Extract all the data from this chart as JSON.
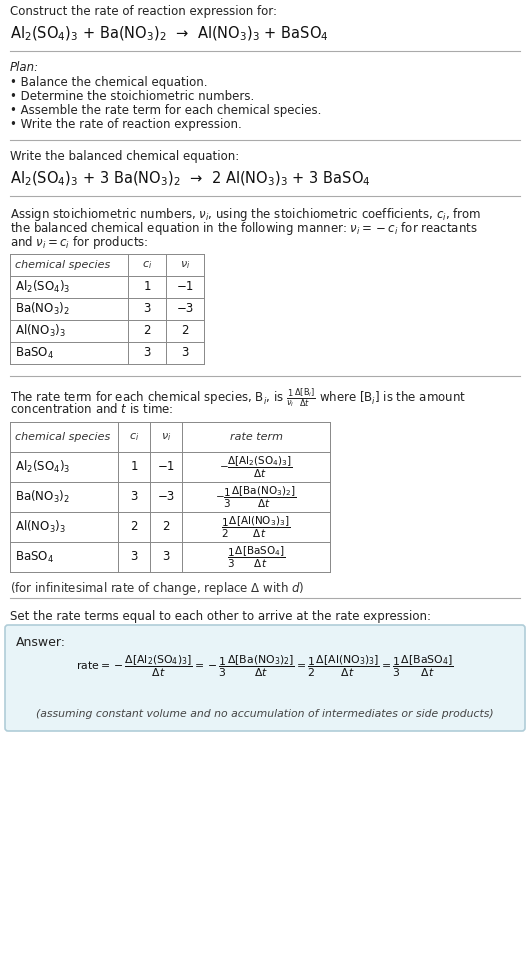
{
  "bg_color": "#ffffff",
  "title_line1": "Construct the rate of reaction expression for:",
  "title_eq": "Al$_2$(SO$_4$)$_3$ + Ba(NO$_3$)$_2$  →  Al(NO$_3$)$_3$ + BaSO$_4$",
  "plan_header": "Plan:",
  "plan_items": [
    "• Balance the chemical equation.",
    "• Determine the stoichiometric numbers.",
    "• Assemble the rate term for each chemical species.",
    "• Write the rate of reaction expression."
  ],
  "balanced_header": "Write the balanced chemical equation:",
  "balanced_eq": "Al$_2$(SO$_4$)$_3$ + 3 Ba(NO$_3$)$_2$  →  2 Al(NO$_3$)$_3$ + 3 BaSO$_4$",
  "stoich_intro_lines": [
    "Assign stoichiometric numbers, $\\nu_i$, using the stoichiometric coefficients, $c_i$, from",
    "the balanced chemical equation in the following manner: $\\nu_i = -c_i$ for reactants",
    "and $\\nu_i = c_i$ for products:"
  ],
  "table1_headers": [
    "chemical species",
    "$c_i$",
    "$\\nu_i$"
  ],
  "table1_rows": [
    [
      "Al$_2$(SO$_4$)$_3$",
      "1",
      "−1"
    ],
    [
      "Ba(NO$_3$)$_2$",
      "3",
      "−3"
    ],
    [
      "Al(NO$_3$)$_3$",
      "2",
      "2"
    ],
    [
      "BaSO$_4$",
      "3",
      "3"
    ]
  ],
  "rate_intro_lines": [
    "The rate term for each chemical species, B$_i$, is $\\frac{1}{\\nu_i}\\frac{\\Delta[\\mathrm{B}_i]}{\\Delta t}$ where [B$_i$] is the amount",
    "concentration and $t$ is time:"
  ],
  "table2_headers": [
    "chemical species",
    "$c_i$",
    "$\\nu_i$",
    "rate term"
  ],
  "table2_col_species": [
    "Al$_2$(SO$_4$)$_3$",
    "Ba(NO$_3$)$_2$",
    "Al(NO$_3$)$_3$",
    "BaSO$_4$"
  ],
  "table2_col_ci": [
    "1",
    "3",
    "2",
    "3"
  ],
  "table2_col_nu": [
    "−1",
    "−3",
    "2",
    "3"
  ],
  "infinitesimal_note": "(for infinitesimal rate of change, replace Δ with $d$)",
  "set_equal_text": "Set the rate terms equal to each other to arrive at the rate expression:",
  "answer_box_color": "#e8f4f8",
  "answer_box_border": "#b0cdd8",
  "answer_label": "Answer:",
  "answer_note": "(assuming constant volume and no accumulation of intermediates or side products)"
}
